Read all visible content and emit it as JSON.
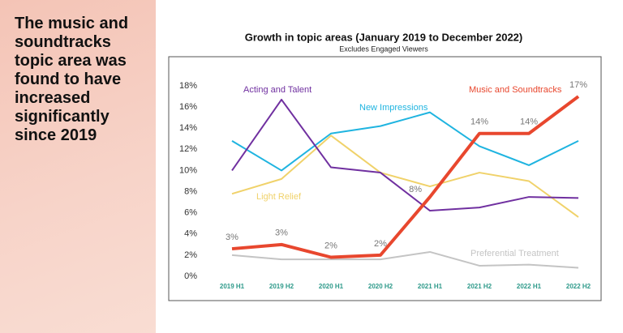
{
  "slide_text": [
    "The music and",
    "soundtracks",
    "topic area was",
    "found to have",
    "increased",
    "significantly",
    "since 2019"
  ],
  "chart_data": {
    "type": "line",
    "title": "Growth in topic areas (January 2019 to December 2022)",
    "subtitle": "Excludes Engaged Viewers",
    "categories": [
      "2019 H1",
      "2019 H2",
      "2020 H1",
      "2020 H2",
      "2021 H1",
      "2021 H2",
      "2022 H1",
      "2022 H2"
    ],
    "ylim": [
      0,
      18
    ],
    "yticks": [
      {
        "value": 0,
        "label": "0%"
      },
      {
        "value": 2,
        "label": "2%"
      },
      {
        "value": 4,
        "label": "4%"
      },
      {
        "value": 6,
        "label": "6%"
      },
      {
        "value": 8,
        "label": "8%"
      },
      {
        "value": 10,
        "label": "10%"
      },
      {
        "value": 12,
        "label": "12%"
      },
      {
        "value": 14,
        "label": "14%"
      },
      {
        "value": 16,
        "label": "16%"
      },
      {
        "value": 18,
        "label": "18%"
      }
    ],
    "grid": false,
    "series": [
      {
        "name": "Music and Soundtracks",
        "color": "#e8472e",
        "values": [
          2.6,
          3.0,
          1.8,
          2.0,
          7.5,
          13.5,
          13.5,
          17.0
        ],
        "value_labels": [
          "3%",
          "3%",
          "2%",
          "2%",
          "8%",
          "14%",
          "14%",
          "17%"
        ]
      },
      {
        "name": "Acting and Talent",
        "color": "#7030a0",
        "values": [
          10.0,
          16.7,
          10.3,
          9.8,
          6.2,
          6.5,
          7.5,
          7.4
        ]
      },
      {
        "name": "New Impressions",
        "color": "#1fb4e0",
        "values": [
          12.8,
          10.0,
          13.5,
          14.2,
          15.5,
          12.3,
          10.5,
          12.8
        ]
      },
      {
        "name": "Light Relief",
        "color": "#f0d26a",
        "values": [
          7.8,
          9.2,
          13.3,
          9.8,
          8.5,
          9.8,
          9.0,
          5.6
        ]
      },
      {
        "name": "Preferential Treatment",
        "color": "#c4c4c4",
        "values": [
          2.0,
          1.6,
          1.6,
          1.6,
          2.3,
          1.0,
          1.1,
          0.8
        ]
      }
    ]
  }
}
